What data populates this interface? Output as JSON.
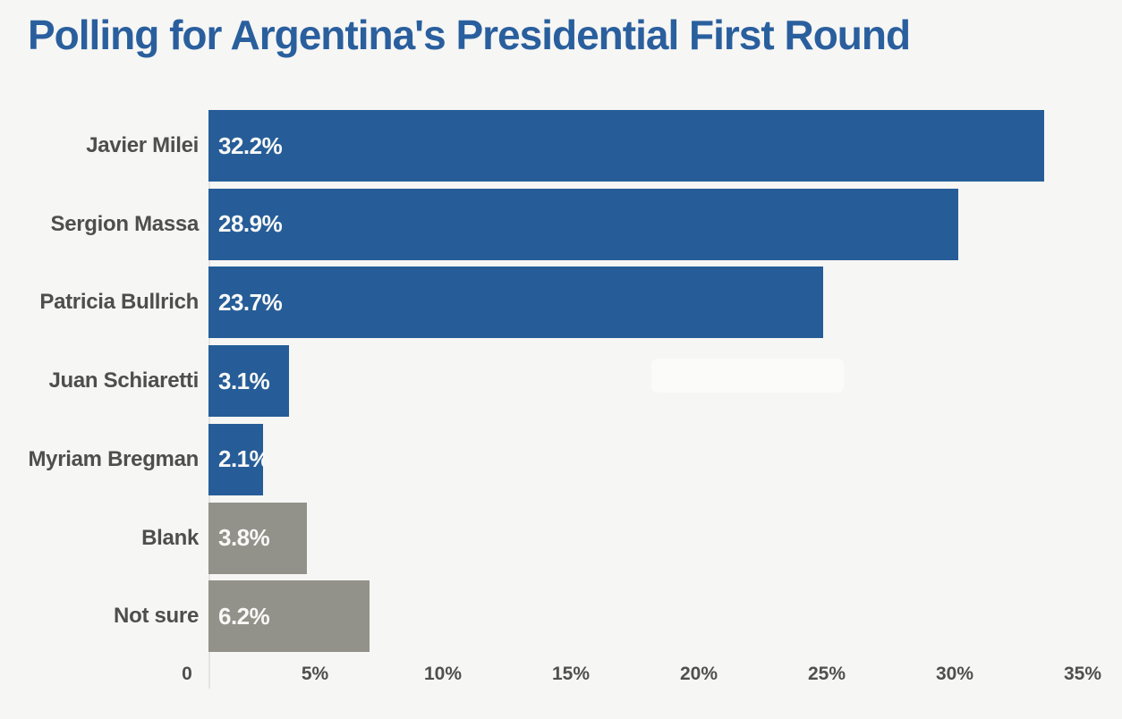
{
  "title": "Polling for Argentina's Presidential First Round",
  "colors": {
    "background": "#f6f6f4",
    "title": "#2a5f9e",
    "bar_blue": "#265d98",
    "bar_gray": "#92928a",
    "label_text": "#4e4e4e",
    "tick_text": "#4f4f4f",
    "value_text": "#f8f8f6",
    "axis_line": "#e4e4e0"
  },
  "chart_data": {
    "type": "bar",
    "orientation": "horizontal",
    "title": "Polling for Argentina's Presidential First Round",
    "categories": [
      "Javier Milei",
      "Sergion Massa",
      "Patricia Bullrich",
      "Juan Schiaretti",
      "Myriam Bregman",
      "Blank",
      "Not sure"
    ],
    "values": [
      32.2,
      28.9,
      23.7,
      3.1,
      2.1,
      3.8,
      6.2
    ],
    "value_labels": [
      "32.2%",
      "28.9%",
      "23.7%",
      "3.1%",
      "2.1%",
      "3.8%",
      "6.2%"
    ],
    "bar_colors": [
      "#265d98",
      "#265d98",
      "#265d98",
      "#265d98",
      "#265d98",
      "#92928a",
      "#92928a"
    ],
    "x_ticks": [
      {
        "value": 0,
        "label": "0"
      },
      {
        "value": 5,
        "label": "5%"
      },
      {
        "value": 10,
        "label": "10%"
      },
      {
        "value": 15,
        "label": "15%"
      },
      {
        "value": 20,
        "label": "20%"
      },
      {
        "value": 25,
        "label": "25%"
      },
      {
        "value": 30,
        "label": "30%"
      },
      {
        "value": 35,
        "label": "35%"
      }
    ],
    "xlim": [
      0,
      35
    ],
    "xlabel": "",
    "ylabel": "",
    "legend": "none",
    "grid": "off"
  }
}
